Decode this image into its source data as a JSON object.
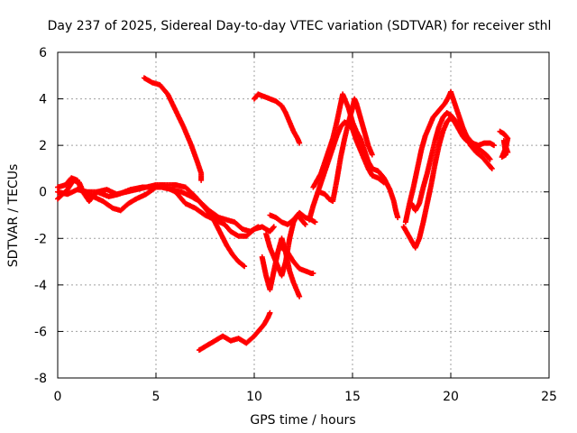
{
  "chart_data": {
    "type": "scatter",
    "title": "Day 237 of 2025, Sidereal Day-to-day VTEC variation (SDTVAR) for receiver sthl",
    "xlabel": "GPS time / hours",
    "ylabel": "SDTVAR / TECUs",
    "xlim": [
      0,
      25
    ],
    "ylim": [
      -8,
      6
    ],
    "xticks": [
      "0",
      "5",
      "10",
      "15",
      "20",
      "25"
    ],
    "yticks": [
      "-8",
      "-6",
      "-4",
      "-2",
      "0",
      "2",
      "4",
      "6"
    ],
    "grid": true,
    "marker": "+",
    "series": [
      {
        "name": "sthl",
        "color": "#ff0000",
        "tracks": [
          [
            [
              0.0,
              -0.3
            ],
            [
              0.5,
              0.1
            ],
            [
              0.8,
              0.5
            ],
            [
              1.1,
              0.4
            ],
            [
              1.3,
              0.0
            ],
            [
              1.8,
              -0.2
            ],
            [
              2.3,
              -0.4
            ],
            [
              2.8,
              -0.7
            ],
            [
              3.2,
              -0.8
            ],
            [
              3.6,
              -0.5
            ],
            [
              4.0,
              -0.3
            ],
            [
              4.5,
              -0.1
            ],
            [
              5.0,
              0.2
            ],
            [
              5.5,
              0.2
            ],
            [
              6.0,
              0.0
            ],
            [
              6.5,
              -0.5
            ],
            [
              7.0,
              -0.7
            ],
            [
              7.5,
              -1.0
            ],
            [
              8.0,
              -1.2
            ],
            [
              8.5,
              -1.4
            ],
            [
              8.8,
              -1.7
            ],
            [
              9.2,
              -1.9
            ],
            [
              9.6,
              -1.9
            ],
            [
              10.0,
              -1.6
            ],
            [
              10.4,
              -1.5
            ],
            [
              10.8,
              -1.7
            ],
            [
              11.0,
              -1.5
            ]
          ],
          [
            [
              0.0,
              0.0
            ],
            [
              0.5,
              -0.1
            ],
            [
              1.0,
              0.1
            ],
            [
              1.5,
              0.0
            ],
            [
              2.0,
              0.0
            ],
            [
              2.5,
              0.1
            ],
            [
              3.0,
              -0.1
            ],
            [
              3.5,
              0.0
            ],
            [
              4.0,
              0.1
            ],
            [
              4.5,
              0.2
            ],
            [
              5.0,
              0.3
            ],
            [
              5.5,
              0.3
            ],
            [
              6.0,
              0.3
            ],
            [
              6.5,
              0.2
            ],
            [
              7.0,
              -0.2
            ],
            [
              7.4,
              -0.6
            ],
            [
              7.8,
              -1.0
            ],
            [
              8.0,
              -1.3
            ],
            [
              8.3,
              -1.8
            ],
            [
              8.6,
              -2.3
            ],
            [
              8.9,
              -2.7
            ],
            [
              9.2,
              -3.0
            ],
            [
              9.5,
              -3.2
            ]
          ],
          [
            [
              0.0,
              0.2
            ],
            [
              0.4,
              0.3
            ],
            [
              0.7,
              0.6
            ],
            [
              1.0,
              0.5
            ],
            [
              1.2,
              0.1
            ],
            [
              1.6,
              -0.4
            ],
            [
              2.0,
              0.0
            ],
            [
              2.6,
              -0.2
            ],
            [
              3.1,
              -0.1
            ],
            [
              3.7,
              0.1
            ],
            [
              4.3,
              0.2
            ],
            [
              4.8,
              0.2
            ],
            [
              5.3,
              0.2
            ],
            [
              5.8,
              0.1
            ],
            [
              6.3,
              0.0
            ],
            [
              6.8,
              -0.2
            ],
            [
              7.2,
              -0.4
            ],
            [
              7.7,
              -0.8
            ],
            [
              8.2,
              -1.1
            ],
            [
              8.6,
              -1.2
            ],
            [
              9.0,
              -1.3
            ],
            [
              9.4,
              -1.6
            ],
            [
              9.8,
              -1.7
            ],
            [
              10.2,
              -1.5
            ]
          ],
          [
            [
              4.4,
              4.9
            ],
            [
              4.8,
              4.7
            ],
            [
              5.2,
              4.6
            ],
            [
              5.6,
              4.2
            ],
            [
              6.0,
              3.5
            ],
            [
              6.4,
              2.8
            ],
            [
              6.8,
              2.0
            ],
            [
              7.1,
              1.3
            ],
            [
              7.3,
              0.8
            ],
            [
              7.3,
              0.5
            ]
          ],
          [
            [
              10.0,
              4.0
            ],
            [
              10.2,
              4.2
            ],
            [
              10.5,
              4.1
            ],
            [
              10.8,
              4.0
            ],
            [
              11.1,
              3.9
            ],
            [
              11.4,
              3.7
            ],
            [
              11.6,
              3.4
            ],
            [
              11.8,
              3.0
            ],
            [
              12.0,
              2.6
            ],
            [
              12.2,
              2.3
            ],
            [
              12.3,
              2.1
            ]
          ],
          [
            [
              7.2,
              -6.8
            ],
            [
              7.6,
              -6.6
            ],
            [
              8.0,
              -6.4
            ],
            [
              8.4,
              -6.2
            ],
            [
              8.8,
              -6.4
            ],
            [
              9.2,
              -6.3
            ],
            [
              9.6,
              -6.5
            ],
            [
              10.0,
              -6.2
            ],
            [
              10.3,
              -5.9
            ],
            [
              10.5,
              -5.7
            ],
            [
              10.7,
              -5.4
            ],
            [
              10.8,
              -5.2
            ]
          ],
          [
            [
              10.4,
              -2.8
            ],
            [
              10.6,
              -3.6
            ],
            [
              10.8,
              -4.2
            ],
            [
              11.0,
              -3.4
            ],
            [
              11.2,
              -2.6
            ],
            [
              11.4,
              -2.0
            ],
            [
              11.6,
              -2.6
            ],
            [
              11.8,
              -3.4
            ],
            [
              12.0,
              -3.9
            ],
            [
              12.2,
              -4.3
            ],
            [
              12.3,
              -4.5
            ]
          ],
          [
            [
              10.6,
              -1.8
            ],
            [
              10.8,
              -2.4
            ],
            [
              11.0,
              -2.8
            ],
            [
              11.2,
              -3.2
            ],
            [
              11.4,
              -3.6
            ],
            [
              11.6,
              -3.0
            ],
            [
              11.8,
              -2.0
            ],
            [
              12.0,
              -1.3
            ],
            [
              12.2,
              -1.0
            ],
            [
              12.4,
              -1.2
            ],
            [
              12.6,
              -1.4
            ]
          ],
          [
            [
              10.8,
              -1.0
            ],
            [
              11.1,
              -1.1
            ],
            [
              11.4,
              -1.3
            ],
            [
              11.7,
              -1.4
            ],
            [
              12.0,
              -1.2
            ],
            [
              12.3,
              -0.9
            ],
            [
              12.6,
              -1.1
            ],
            [
              12.9,
              -1.2
            ],
            [
              13.1,
              -1.3
            ]
          ],
          [
            [
              11.4,
              -2.4
            ],
            [
              11.7,
              -2.6
            ],
            [
              12.0,
              -3.0
            ],
            [
              12.3,
              -3.3
            ],
            [
              12.6,
              -3.4
            ],
            [
              12.9,
              -3.5
            ],
            [
              13.0,
              -3.5
            ]
          ],
          [
            [
              12.8,
              -1.2
            ],
            [
              13.0,
              -0.6
            ],
            [
              13.2,
              -0.1
            ],
            [
              13.4,
              0.4
            ],
            [
              13.6,
              0.9
            ],
            [
              13.8,
              1.4
            ],
            [
              14.0,
              1.9
            ],
            [
              14.2,
              2.4
            ],
            [
              14.4,
              2.8
            ],
            [
              14.6,
              3.0
            ],
            [
              14.8,
              2.9
            ],
            [
              15.0,
              2.7
            ],
            [
              15.2,
              2.2
            ],
            [
              15.4,
              1.8
            ],
            [
              15.6,
              1.4
            ],
            [
              15.8,
              1.0
            ],
            [
              16.0,
              0.7
            ],
            [
              16.3,
              0.6
            ],
            [
              16.6,
              0.4
            ]
          ],
          [
            [
              13.0,
              0.2
            ],
            [
              13.2,
              0.5
            ],
            [
              13.4,
              0.8
            ],
            [
              13.6,
              1.3
            ],
            [
              13.8,
              1.8
            ],
            [
              14.0,
              2.3
            ],
            [
              14.2,
              3.0
            ],
            [
              14.4,
              3.8
            ],
            [
              14.5,
              4.2
            ],
            [
              14.6,
              4.0
            ],
            [
              14.8,
              3.6
            ],
            [
              15.0,
              3.0
            ],
            [
              15.2,
              2.6
            ],
            [
              15.4,
              2.3
            ],
            [
              15.6,
              1.8
            ],
            [
              15.8,
              1.3
            ],
            [
              16.0,
              1.0
            ],
            [
              16.3,
              0.9
            ],
            [
              16.6,
              0.6
            ],
            [
              16.9,
              0.1
            ],
            [
              17.1,
              -0.4
            ],
            [
              17.2,
              -0.8
            ],
            [
              17.3,
              -1.1
            ]
          ],
          [
            [
              13.3,
              0.0
            ],
            [
              13.6,
              -0.1
            ],
            [
              13.8,
              -0.3
            ],
            [
              14.0,
              -0.4
            ],
            [
              14.2,
              0.5
            ],
            [
              14.4,
              1.5
            ],
            [
              14.6,
              2.3
            ],
            [
              14.8,
              3.0
            ],
            [
              15.0,
              3.6
            ],
            [
              15.1,
              4.0
            ],
            [
              15.2,
              3.8
            ],
            [
              15.4,
              3.2
            ],
            [
              15.6,
              2.6
            ],
            [
              15.8,
              2.0
            ],
            [
              16.0,
              1.6
            ]
          ],
          [
            [
              17.7,
              -1.3
            ],
            [
              17.9,
              -0.5
            ],
            [
              18.1,
              0.2
            ],
            [
              18.3,
              1.0
            ],
            [
              18.5,
              1.8
            ],
            [
              18.7,
              2.4
            ],
            [
              18.9,
              2.8
            ],
            [
              19.1,
              3.2
            ],
            [
              19.3,
              3.4
            ],
            [
              19.5,
              3.6
            ],
            [
              19.7,
              3.8
            ],
            [
              19.9,
              4.1
            ],
            [
              20.0,
              4.3
            ],
            [
              20.2,
              3.8
            ],
            [
              20.4,
              3.3
            ],
            [
              20.6,
              2.8
            ],
            [
              20.8,
              2.4
            ],
            [
              21.0,
              2.0
            ],
            [
              21.3,
              1.7
            ],
            [
              21.6,
              1.5
            ],
            [
              21.9,
              1.2
            ],
            [
              22.1,
              1.0
            ]
          ],
          [
            [
              17.6,
              -1.5
            ],
            [
              17.8,
              -1.8
            ],
            [
              18.0,
              -2.1
            ],
            [
              18.2,
              -2.4
            ],
            [
              18.4,
              -2.0
            ],
            [
              18.6,
              -1.3
            ],
            [
              18.8,
              -0.5
            ],
            [
              19.0,
              0.3
            ],
            [
              19.2,
              1.2
            ],
            [
              19.4,
              2.0
            ],
            [
              19.6,
              2.6
            ],
            [
              19.8,
              3.0
            ],
            [
              20.0,
              3.2
            ],
            [
              20.2,
              3.0
            ],
            [
              20.4,
              2.7
            ],
            [
              20.6,
              2.4
            ],
            [
              20.8,
              2.2
            ],
            [
              21.1,
              2.1
            ],
            [
              21.4,
              2.0
            ],
            [
              21.7,
              2.1
            ],
            [
              22.0,
              2.1
            ],
            [
              22.2,
              2.0
            ]
          ],
          [
            [
              18.0,
              -0.5
            ],
            [
              18.2,
              -0.8
            ],
            [
              18.4,
              -0.5
            ],
            [
              18.6,
              0.2
            ],
            [
              18.8,
              0.8
            ],
            [
              19.0,
              1.5
            ],
            [
              19.2,
              2.2
            ],
            [
              19.4,
              2.8
            ],
            [
              19.6,
              3.2
            ],
            [
              19.8,
              3.4
            ],
            [
              20.0,
              3.3
            ],
            [
              20.3,
              3.0
            ],
            [
              20.6,
              2.6
            ],
            [
              20.9,
              2.3
            ],
            [
              21.2,
              2.0
            ],
            [
              21.5,
              1.8
            ],
            [
              21.8,
              1.6
            ],
            [
              22.0,
              1.4
            ]
          ],
          [
            [
              22.5,
              2.6
            ],
            [
              22.7,
              2.5
            ],
            [
              22.9,
              2.3
            ],
            [
              22.8,
              1.9
            ],
            [
              22.6,
              1.5
            ],
            [
              22.8,
              1.6
            ],
            [
              22.7,
              2.2
            ],
            [
              22.9,
              1.7
            ]
          ]
        ]
      }
    ]
  }
}
